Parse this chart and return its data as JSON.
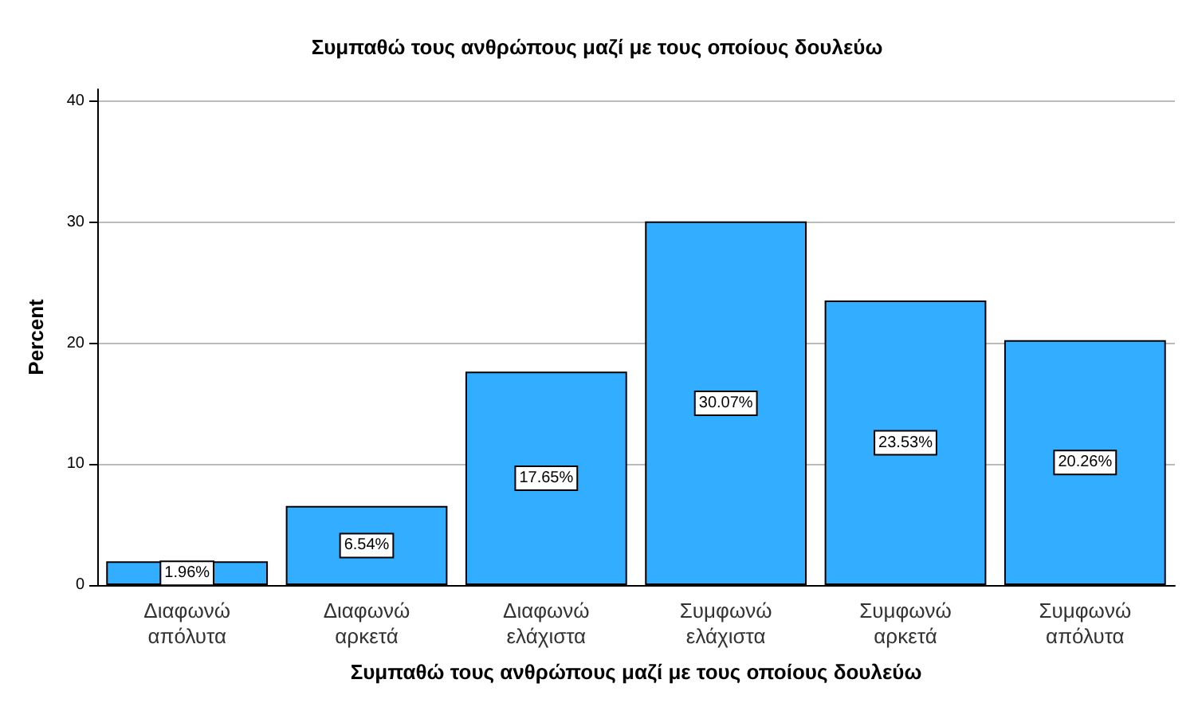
{
  "chart_data": {
    "type": "bar",
    "title": "Συμπαθώ τους ανθρώπους μαζί με τους οποίους δουλεύω",
    "xlabel": "Συμπαθώ τους ανθρώπους μαζί με τους οποίους δουλεύω",
    "ylabel": "Percent",
    "categories": [
      "Διαφωνώ\nαπόλυτα",
      "Διαφωνώ\nαρκετά",
      "Διαφωνώ\nελάχιστα",
      "Συμφωνώ\nελάχιστα",
      "Συμφωνώ\nαρκετά",
      "Συμφωνώ\nαπόλυτα"
    ],
    "values": [
      1.96,
      6.54,
      17.65,
      30.07,
      23.53,
      20.26
    ],
    "value_labels": [
      "1.96%",
      "6.54%",
      "17.65%",
      "30.07%",
      "23.53%",
      "20.26%"
    ],
    "color": "#33adff",
    "ylim": [
      0,
      41
    ],
    "yticks": [
      0,
      10,
      20,
      30,
      40
    ],
    "grid": "y"
  }
}
